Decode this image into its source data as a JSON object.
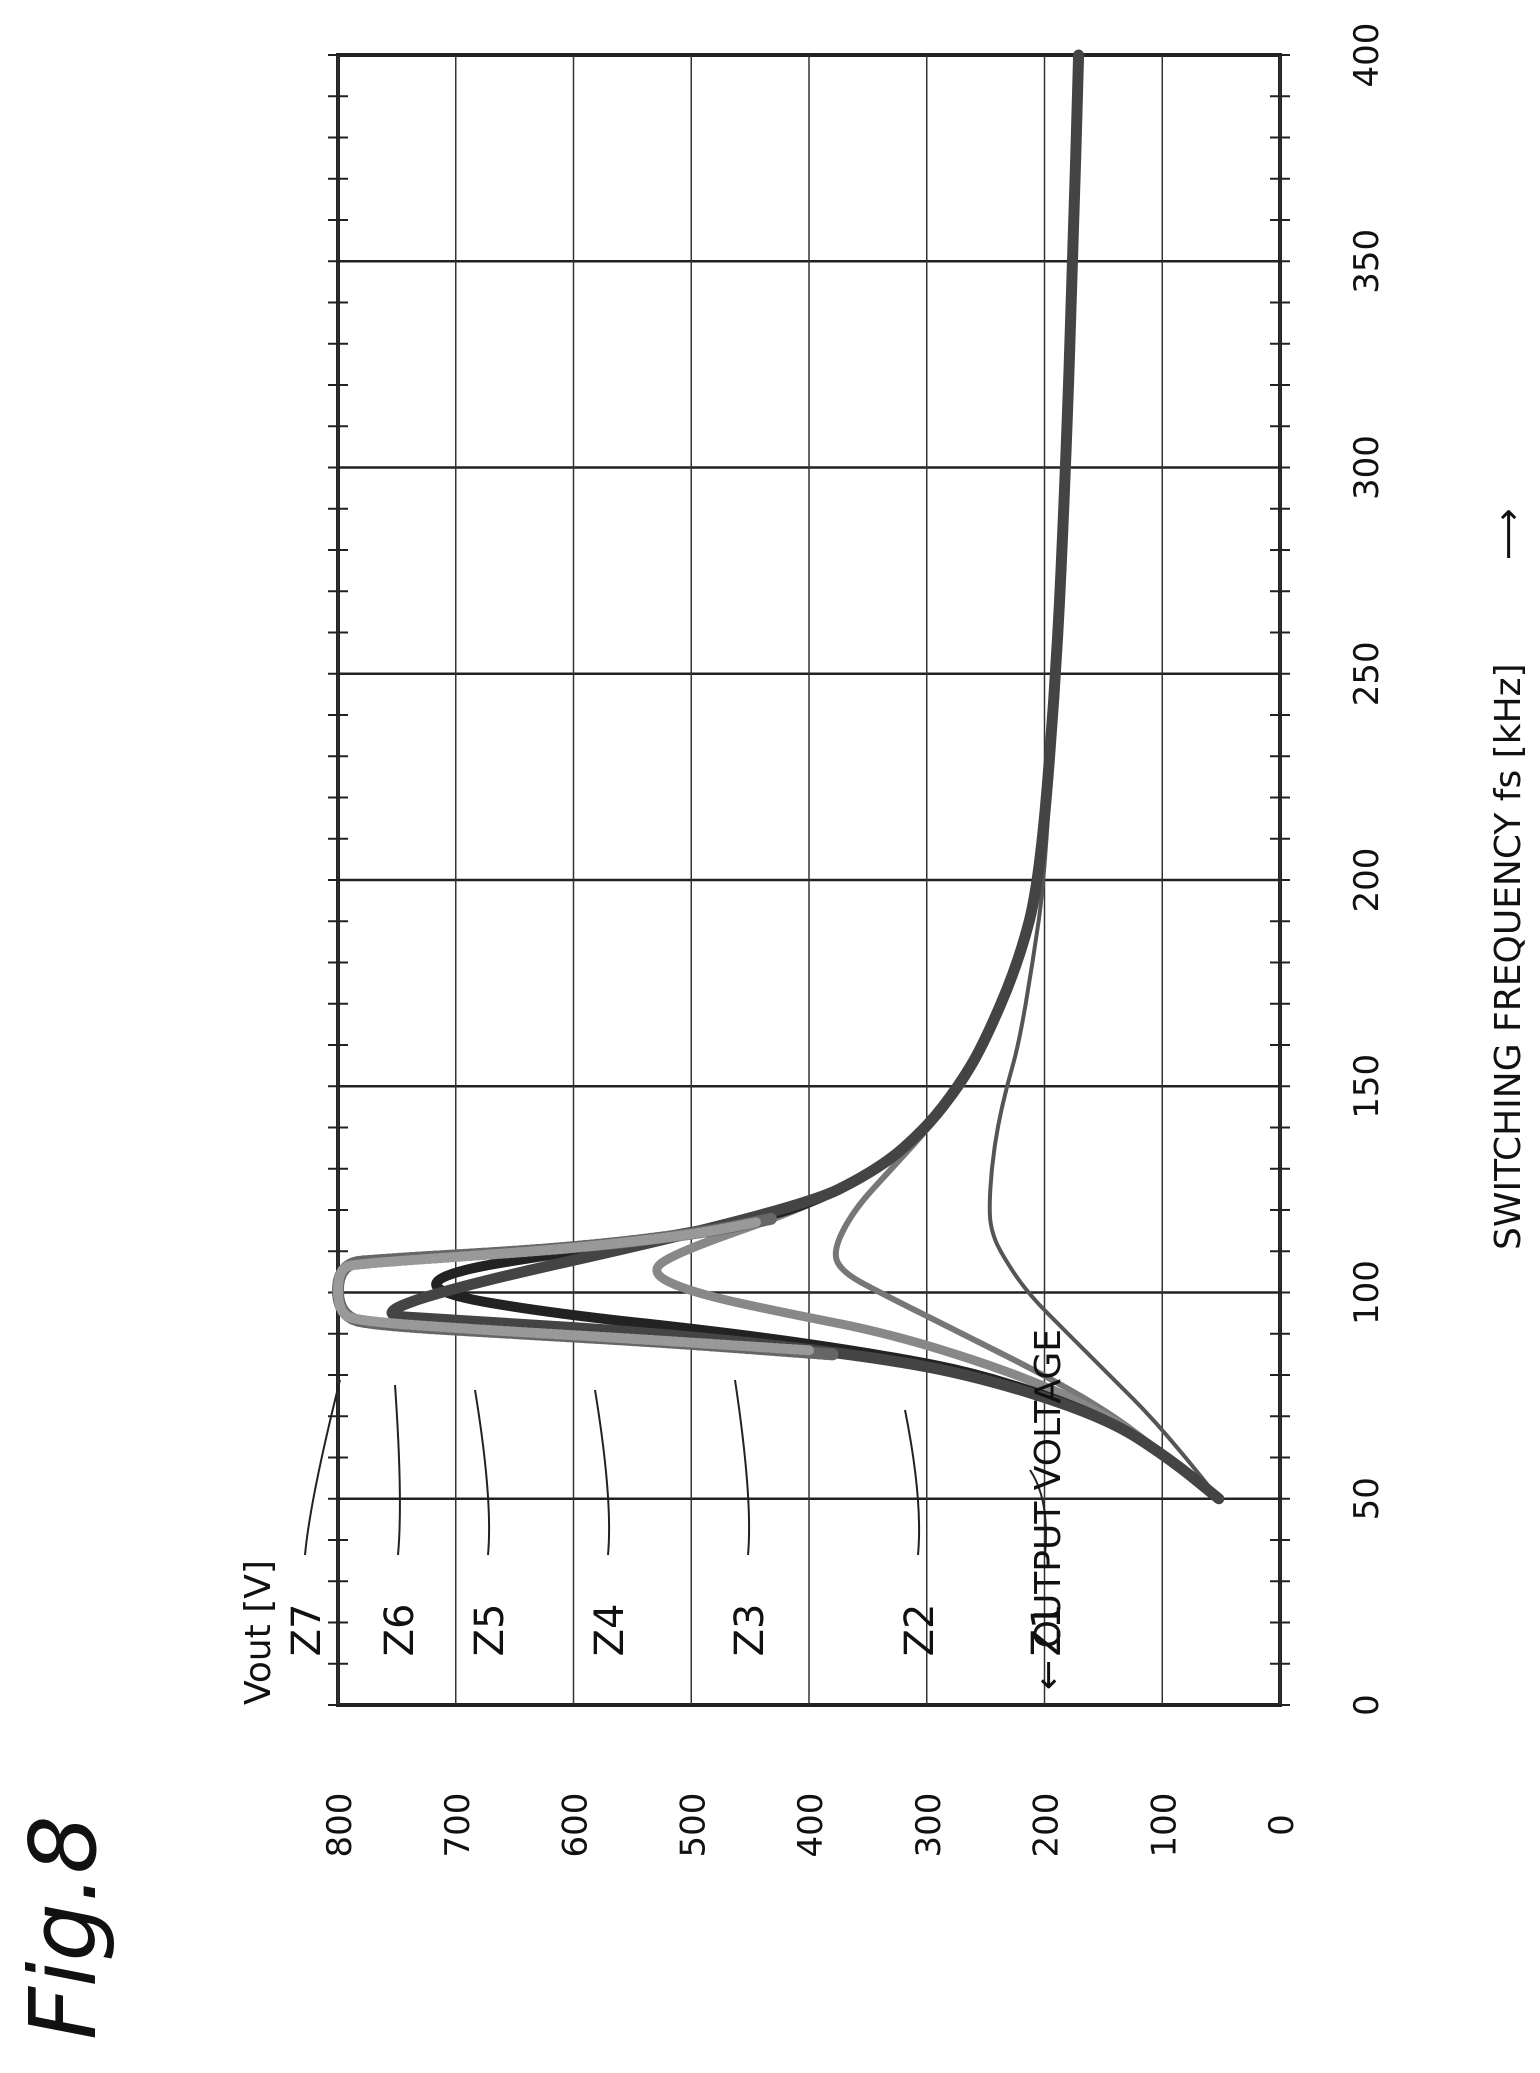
{
  "figure_label": "Fig.8",
  "chart_data": {
    "type": "line",
    "ylabel": "← OUTPUT VOLTAGE",
    "yunit": "Vout [V]",
    "xlabel": "SWITCHING FREQUENCY fs [kHz]",
    "xarrow": "⟶",
    "xlim": [
      0,
      400
    ],
    "ylim": [
      0,
      800
    ],
    "xticks": [
      0,
      50,
      100,
      150,
      200,
      250,
      300,
      350,
      400
    ],
    "yticks": [
      0,
      100,
      200,
      300,
      400,
      500,
      600,
      700,
      800
    ],
    "grid": true,
    "series": [
      {
        "name": "Z1",
        "x": [
          50,
          60,
          70,
          80,
          90,
          100,
          110,
          115,
          120,
          130,
          140,
          150,
          160,
          180,
          200,
          250,
          300,
          350,
          400
        ],
        "y": [
          52,
          80,
          110,
          145,
          180,
          215,
          238,
          245,
          247,
          245,
          240,
          232,
          222,
          210,
          200,
          190,
          182,
          176,
          170
        ]
      },
      {
        "name": "Z2",
        "x": [
          50,
          60,
          70,
          80,
          90,
          100,
          105,
          110,
          120,
          130,
          140,
          150,
          160,
          180,
          200,
          250,
          300,
          350,
          400
        ],
        "y": [
          50,
          95,
          140,
          200,
          270,
          340,
          372,
          380,
          362,
          330,
          298,
          270,
          250,
          220,
          203,
          190,
          182,
          176,
          171
        ]
      },
      {
        "name": "Z3",
        "x": [
          50,
          60,
          70,
          80,
          90,
          95,
          100,
          105,
          110,
          120,
          130,
          140,
          150,
          160,
          180,
          200,
          250,
          300,
          350,
          400
        ],
        "y": [
          52,
          95,
          145,
          220,
          330,
          420,
          500,
          537,
          510,
          410,
          340,
          300,
          273,
          252,
          222,
          204,
          190,
          182,
          176,
          171
        ]
      },
      {
        "name": "Z4",
        "x": [
          50,
          60,
          70,
          80,
          85,
          90,
          95,
          100,
          105,
          110,
          115,
          120,
          130,
          140,
          150,
          160,
          180,
          200,
          250,
          300,
          350,
          400
        ],
        "y": [
          52,
          95,
          150,
          250,
          340,
          460,
          620,
          722,
          710,
          600,
          490,
          410,
          340,
          300,
          273,
          252,
          222,
          204,
          190,
          182,
          176,
          171
        ]
      },
      {
        "name": "Z5",
        "x": [
          50,
          60,
          70,
          80,
          85,
          90,
          93,
          95,
          120,
          130,
          140,
          150,
          160,
          180,
          200,
          250,
          300,
          350,
          400
        ],
        "y": [
          52,
          95,
          150,
          260,
          360,
          520,
          680,
          800,
          410,
          340,
          300,
          273,
          252,
          222,
          204,
          190,
          182,
          176,
          171
        ]
      },
      {
        "name": "Z6",
        "x": [
          85,
          88,
          90,
          92,
          94,
          107,
          108,
          110,
          112,
          115,
          118
        ],
        "y": [
          380,
          520,
          640,
          760,
          800,
          800,
          760,
          640,
          560,
          480,
          430
        ]
      },
      {
        "name": "Z7",
        "x": [
          86,
          89,
          91,
          93,
          95,
          106,
          107,
          109,
          111,
          114,
          117
        ],
        "y": [
          400,
          560,
          680,
          780,
          800,
          800,
          780,
          680,
          590,
          500,
          445
        ]
      }
    ]
  }
}
